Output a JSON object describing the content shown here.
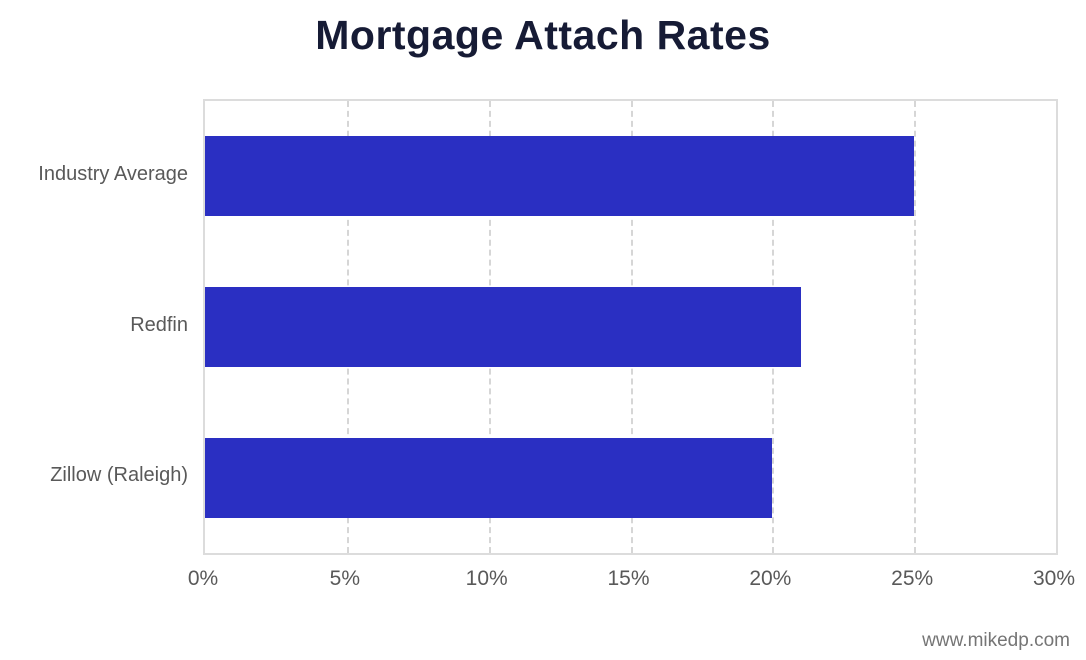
{
  "chart_data": {
    "type": "bar",
    "orientation": "horizontal",
    "title": "Mortgage Attach Rates",
    "categories": [
      "Industry Average",
      "Redfin",
      "Zillow (Raleigh)"
    ],
    "values": [
      25,
      21,
      20
    ],
    "value_unit": "%",
    "xlabel": "",
    "ylabel": "",
    "xlim": [
      0,
      30
    ],
    "xticks": [
      0,
      5,
      10,
      15,
      20,
      25,
      30
    ],
    "xtick_labels": [
      "0%",
      "5%",
      "10%",
      "15%",
      "20%",
      "25%",
      "30%"
    ],
    "grid": true,
    "legend": false,
    "bar_color": "#2a2fc2",
    "gridline_color": "#d6d6d6",
    "axis_label_color": "#595959",
    "title_color": "#161b35"
  },
  "watermark": "www.mikedp.com"
}
